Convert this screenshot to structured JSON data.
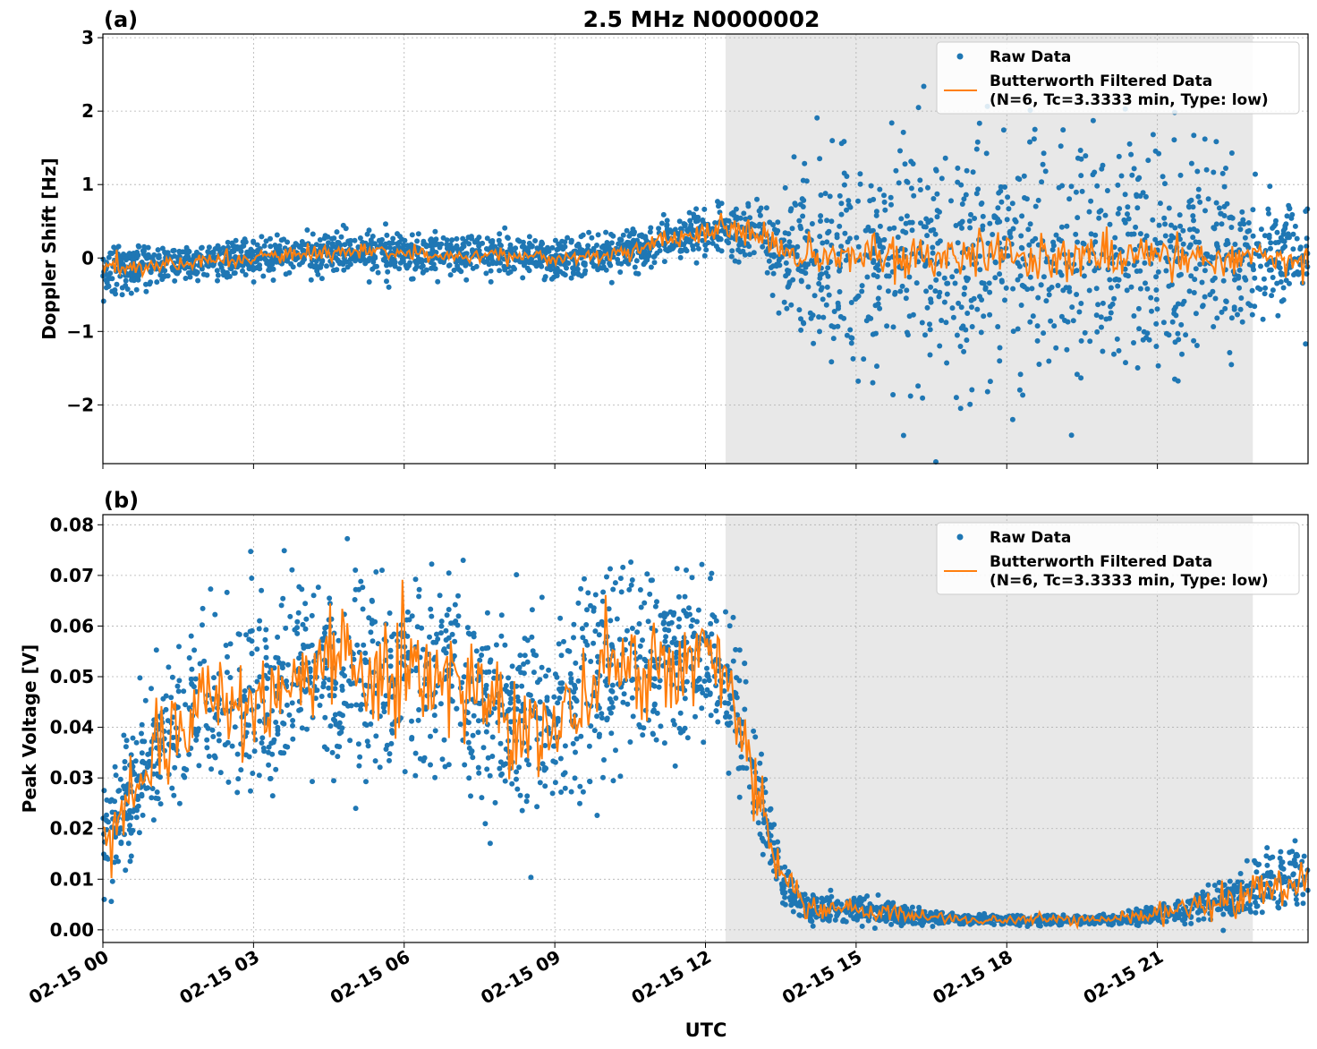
{
  "figure": {
    "title": "2.5 MHz N0000002",
    "xlabel": "UTC",
    "x_ticks": [
      "02-15 00",
      "02-15 03",
      "02-15 06",
      "02-15 09",
      "02-15 12",
      "02-15 15",
      "02-15 18",
      "02-15 21"
    ],
    "shaded_interval": [
      "02-15 12:24",
      "02-15 22:54"
    ],
    "colors": {
      "raw": "#1f77b4",
      "filtered": "#ff7f0e",
      "shade": "#e8e8e8",
      "grid": "#b0b0b0"
    }
  },
  "chart_data": [
    {
      "type": "scatter",
      "panel_label": "(a)",
      "ylabel": "Doppler Shift [Hz]",
      "xlim": [
        "02-15 00:00",
        "02-15 24:00"
      ],
      "ylim": [
        -2.8,
        3.05
      ],
      "y_ticks": [
        "−2",
        "−1",
        "0",
        "1",
        "2",
        "3"
      ],
      "grid": true,
      "legend": {
        "placement": "top-right",
        "entries": [
          "Raw Data",
          "Butterworth Filtered Data",
          "(N=6, Tc=3.3333 min, Type: low)"
        ]
      },
      "series": [
        {
          "name": "Raw Data",
          "style": "points",
          "hours": [
            0,
            1,
            2,
            3,
            4,
            5,
            6,
            7,
            8,
            9,
            10,
            11,
            12,
            12.5,
            13,
            13.5,
            14,
            15,
            16,
            17,
            18,
            19,
            20,
            21,
            22,
            23,
            24
          ],
          "center": [
            -0.15,
            -0.1,
            -0.05,
            0.0,
            0.05,
            0.08,
            0.05,
            0.03,
            0.05,
            0.0,
            0.05,
            0.2,
            0.35,
            0.35,
            0.3,
            0.05,
            0.0,
            0.0,
            0.0,
            0.0,
            0.0,
            0.0,
            0.0,
            0.0,
            0.0,
            0.0,
            0.0
          ],
          "spread": [
            0.45,
            0.3,
            0.3,
            0.3,
            0.3,
            0.3,
            0.3,
            0.3,
            0.35,
            0.3,
            0.3,
            0.3,
            0.35,
            0.4,
            0.45,
            0.8,
            1.1,
            1.5,
            1.8,
            1.9,
            1.9,
            1.9,
            1.9,
            1.8,
            1.5,
            0.9,
            0.7
          ]
        },
        {
          "name": "Butterworth Filtered Data",
          "style": "line",
          "hours": [
            0,
            1,
            2,
            3,
            4,
            5,
            6,
            7,
            8,
            9,
            10,
            11,
            12,
            12.5,
            13,
            13.5,
            14,
            15,
            16,
            17,
            18,
            19,
            20,
            21,
            22,
            23,
            24
          ],
          "values": [
            -0.15,
            -0.1,
            -0.05,
            0.0,
            0.05,
            0.08,
            0.05,
            0.03,
            0.05,
            0.0,
            0.02,
            0.2,
            0.35,
            0.4,
            0.35,
            0.1,
            0.0,
            0.0,
            0.05,
            0.05,
            0.0,
            0.05,
            0.0,
            0.05,
            0.0,
            0.05,
            -0.1
          ],
          "noise": [
            0.08,
            0.05,
            0.05,
            0.05,
            0.05,
            0.05,
            0.05,
            0.05,
            0.06,
            0.05,
            0.05,
            0.06,
            0.08,
            0.1,
            0.1,
            0.1,
            0.12,
            0.14,
            0.16,
            0.16,
            0.16,
            0.16,
            0.16,
            0.16,
            0.14,
            0.1,
            0.1
          ]
        }
      ]
    },
    {
      "type": "scatter",
      "panel_label": "(b)",
      "ylabel": "Peak Voltage [V]",
      "xlim": [
        "02-15 00:00",
        "02-15 24:00"
      ],
      "ylim": [
        -0.0025,
        0.082
      ],
      "y_ticks": [
        "0.00",
        "0.01",
        "0.02",
        "0.03",
        "0.04",
        "0.05",
        "0.06",
        "0.07",
        "0.08"
      ],
      "grid": true,
      "legend": {
        "placement": "top-right",
        "entries": [
          "Raw Data",
          "Butterworth Filtered Data",
          "(N=6, Tc=3.3333 min, Type: low)"
        ]
      },
      "series": [
        {
          "name": "Raw Data",
          "style": "points",
          "hours": [
            0,
            0.5,
            1,
            2,
            3,
            4,
            5,
            6,
            7,
            8,
            9,
            10,
            11,
            12,
            12.5,
            13,
            13.5,
            14,
            15,
            16,
            17,
            18,
            19,
            20,
            21,
            22,
            23,
            24
          ],
          "center": [
            0.018,
            0.025,
            0.035,
            0.045,
            0.045,
            0.05,
            0.052,
            0.05,
            0.05,
            0.042,
            0.04,
            0.05,
            0.053,
            0.052,
            0.048,
            0.03,
            0.01,
            0.004,
            0.004,
            0.003,
            0.002,
            0.002,
            0.002,
            0.002,
            0.003,
            0.005,
            0.008,
            0.012
          ],
          "spread": [
            0.012,
            0.014,
            0.016,
            0.02,
            0.02,
            0.022,
            0.022,
            0.022,
            0.022,
            0.02,
            0.02,
            0.022,
            0.02,
            0.018,
            0.016,
            0.012,
            0.006,
            0.003,
            0.003,
            0.002,
            0.001,
            0.001,
            0.001,
            0.001,
            0.002,
            0.004,
            0.006,
            0.008
          ]
        },
        {
          "name": "Butterworth Filtered Data",
          "style": "line",
          "hours": [
            0,
            0.5,
            1,
            2,
            3,
            4,
            5,
            6,
            7,
            8,
            9,
            10,
            11,
            12,
            12.5,
            13,
            13.5,
            14,
            15,
            16,
            17,
            18,
            19,
            20,
            21,
            22,
            23,
            24
          ],
          "values": [
            0.018,
            0.025,
            0.035,
            0.045,
            0.045,
            0.05,
            0.053,
            0.05,
            0.05,
            0.042,
            0.04,
            0.05,
            0.053,
            0.053,
            0.048,
            0.03,
            0.01,
            0.004,
            0.004,
            0.003,
            0.002,
            0.002,
            0.002,
            0.002,
            0.003,
            0.005,
            0.008,
            0.01
          ],
          "noise": [
            0.004,
            0.004,
            0.004,
            0.005,
            0.005,
            0.005,
            0.005,
            0.005,
            0.005,
            0.005,
            0.005,
            0.005,
            0.005,
            0.004,
            0.003,
            0.003,
            0.002,
            0.001,
            0.001,
            0.0008,
            0.0005,
            0.0005,
            0.0005,
            0.0005,
            0.0008,
            0.0015,
            0.002,
            0.002
          ]
        }
      ]
    }
  ]
}
